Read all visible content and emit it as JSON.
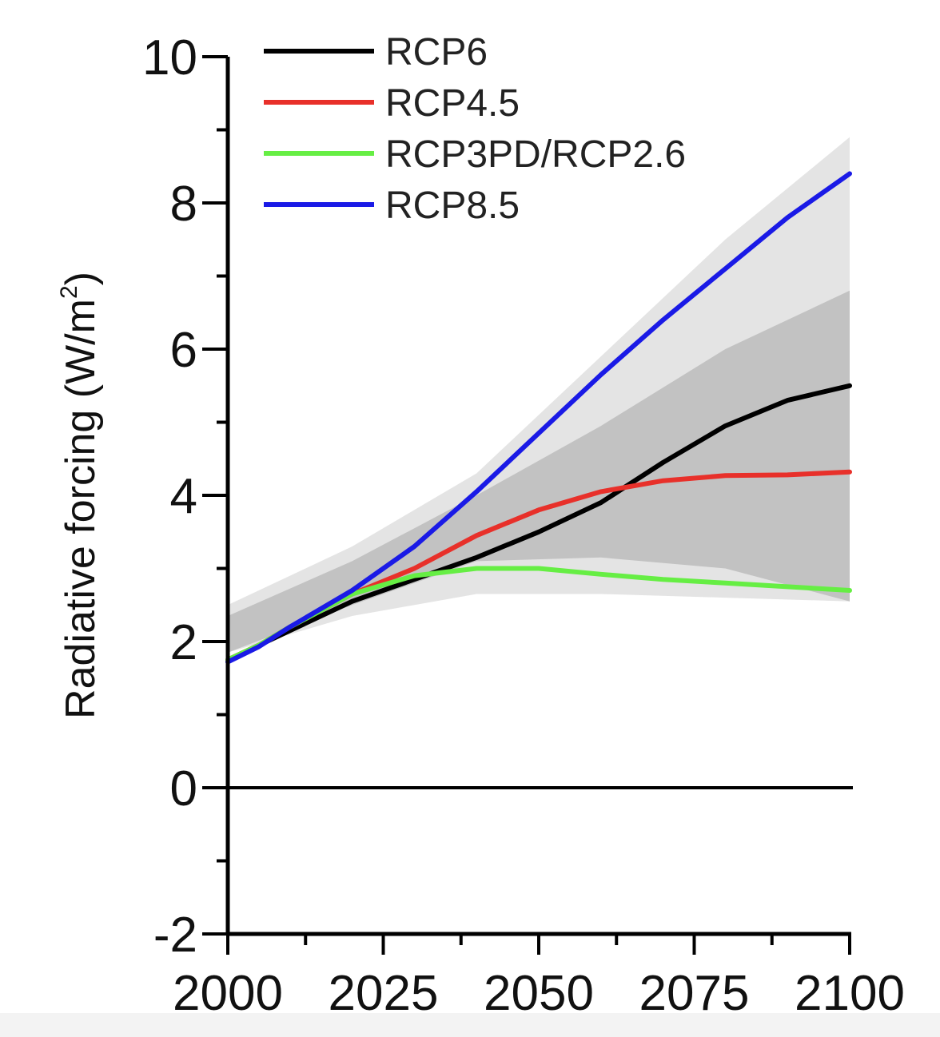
{
  "chart_data": {
    "type": "line",
    "xlabel": "",
    "ylabel": "Radiative forcing (W/m",
    "ylabel_sup": "2",
    "ylabel_end": ")",
    "xlim": [
      2000,
      2100
    ],
    "ylim": [
      -2,
      10
    ],
    "x_ticks": [
      2000,
      2025,
      2050,
      2075,
      2100
    ],
    "x_tick_labels": [
      "2000",
      "2025",
      "2050",
      "2075",
      "2100"
    ],
    "y_ticks": [
      -2,
      0,
      2,
      4,
      6,
      8,
      10
    ],
    "y_tick_labels": [
      "-2",
      "0",
      "2",
      "4",
      "6",
      "8",
      "10"
    ],
    "zero_line": true,
    "grid": false,
    "legend_position": "top-left",
    "bands": [
      {
        "color": "#e4e4e4",
        "x": [
          2000,
          2020,
          2040,
          2060,
          2080,
          2100
        ],
        "upper": [
          2.5,
          3.3,
          4.3,
          5.9,
          7.5,
          8.9
        ],
        "lower": [
          1.85,
          2.35,
          2.65,
          2.65,
          2.6,
          2.55
        ]
      },
      {
        "color": "#c2c2c2",
        "x": [
          2000,
          2020,
          2040,
          2060,
          2080,
          2100
        ],
        "upper": [
          2.35,
          3.1,
          4.0,
          4.95,
          6.0,
          6.8
        ],
        "lower": [
          1.85,
          2.5,
          3.1,
          3.15,
          3.0,
          2.55
        ]
      }
    ],
    "series": [
      {
        "name": "RCP6",
        "color": "#000000",
        "x": [
          2000,
          2005,
          2010,
          2020,
          2030,
          2040,
          2050,
          2060,
          2070,
          2080,
          2090,
          2100
        ],
        "values": [
          1.75,
          1.95,
          2.15,
          2.55,
          2.85,
          3.15,
          3.5,
          3.9,
          4.45,
          4.95,
          5.3,
          5.5
        ]
      },
      {
        "name": "RCP4.5",
        "color": "#e8302a",
        "x": [
          2000,
          2005,
          2010,
          2020,
          2030,
          2040,
          2050,
          2060,
          2070,
          2080,
          2090,
          2100
        ],
        "values": [
          1.75,
          1.95,
          2.2,
          2.65,
          3.0,
          3.45,
          3.8,
          4.05,
          4.2,
          4.27,
          4.28,
          4.32
        ]
      },
      {
        "name": "RCP3PD/RCP2.6",
        "color": "#66ee44",
        "x": [
          2000,
          2005,
          2010,
          2020,
          2030,
          2040,
          2050,
          2060,
          2070,
          2080,
          2090,
          2100
        ],
        "values": [
          1.75,
          1.95,
          2.2,
          2.65,
          2.9,
          3.0,
          3.0,
          2.92,
          2.85,
          2.8,
          2.75,
          2.7
        ]
      },
      {
        "name": "RCP8.5",
        "color": "#1a1ae6",
        "x": [
          2000,
          2005,
          2010,
          2020,
          2030,
          2040,
          2050,
          2060,
          2070,
          2080,
          2090,
          2100
        ],
        "values": [
          1.72,
          1.93,
          2.2,
          2.7,
          3.3,
          4.05,
          4.85,
          5.65,
          6.4,
          7.1,
          7.8,
          8.4
        ]
      }
    ]
  }
}
